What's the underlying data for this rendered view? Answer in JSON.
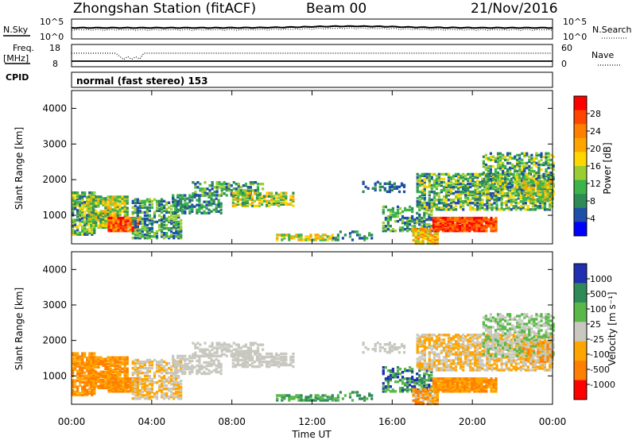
{
  "header": {
    "station": "Zhongshan Station (fitACF)",
    "beam": "Beam 00",
    "date": "21/Nov/2016"
  },
  "strip": {
    "nsky_label": "N.Sky",
    "nsky_ticks": [
      "10^5",
      "10^0"
    ],
    "nsearch_label": "N.Search",
    "nsearch_ticks": [
      "10^5",
      "10^0"
    ],
    "freq_label": "Freq.",
    "freq_unit": "[MHz]",
    "freq_ticks": [
      "18",
      "8"
    ],
    "nave_label": "Nave",
    "nave_ticks": [
      "60",
      "0"
    ],
    "cpid_label": "CPID",
    "cpid_text": "normal (fast stereo) 153"
  },
  "colors": {
    "power": [
      "#0000ff",
      "#1f4fa8",
      "#2e8b57",
      "#3cb44b",
      "#9acd32",
      "#ffd700",
      "#ffa500",
      "#ff7f00",
      "#ff4500",
      "#ff0000"
    ],
    "velocity": [
      "#2030b0",
      "#2e8b57",
      "#5ab84a",
      "#c8c8c0",
      "#ffa500",
      "#ff7f00",
      "#ff0000"
    ],
    "ground_scatter": "#c8c8c0"
  },
  "chart_data": [
    {
      "type": "heatmap",
      "name": "power",
      "ylabel": "Slant Range [km]",
      "yticks": [
        1000,
        2000,
        3000,
        4000
      ],
      "ylim": [
        200,
        4500
      ],
      "xlim": [
        0,
        24
      ],
      "colorbar": {
        "label": "Power [dB]",
        "ticks": [
          "4",
          "8",
          "12",
          "16",
          "20",
          "24",
          "28"
        ],
        "range": [
          0,
          30
        ]
      }
    },
    {
      "type": "heatmap",
      "name": "velocity",
      "ylabel": "Slant Range [km]",
      "yticks": [
        1000,
        2000,
        3000,
        4000
      ],
      "ylim": [
        200,
        4500
      ],
      "xlim": [
        0,
        24
      ],
      "colorbar": {
        "label": "Velocity [m s⁻¹]",
        "ticks": [
          "1000",
          "500",
          "100",
          "25",
          "-25",
          "-100",
          "-500",
          "-1000"
        ]
      }
    }
  ],
  "xaxis": {
    "label": "Time UT",
    "ticks": [
      "00:00",
      "04:00",
      "08:00",
      "12:00",
      "16:00",
      "20:00",
      "00:00"
    ],
    "tick_hours": [
      0,
      4,
      8,
      12,
      16,
      20,
      24
    ]
  }
}
